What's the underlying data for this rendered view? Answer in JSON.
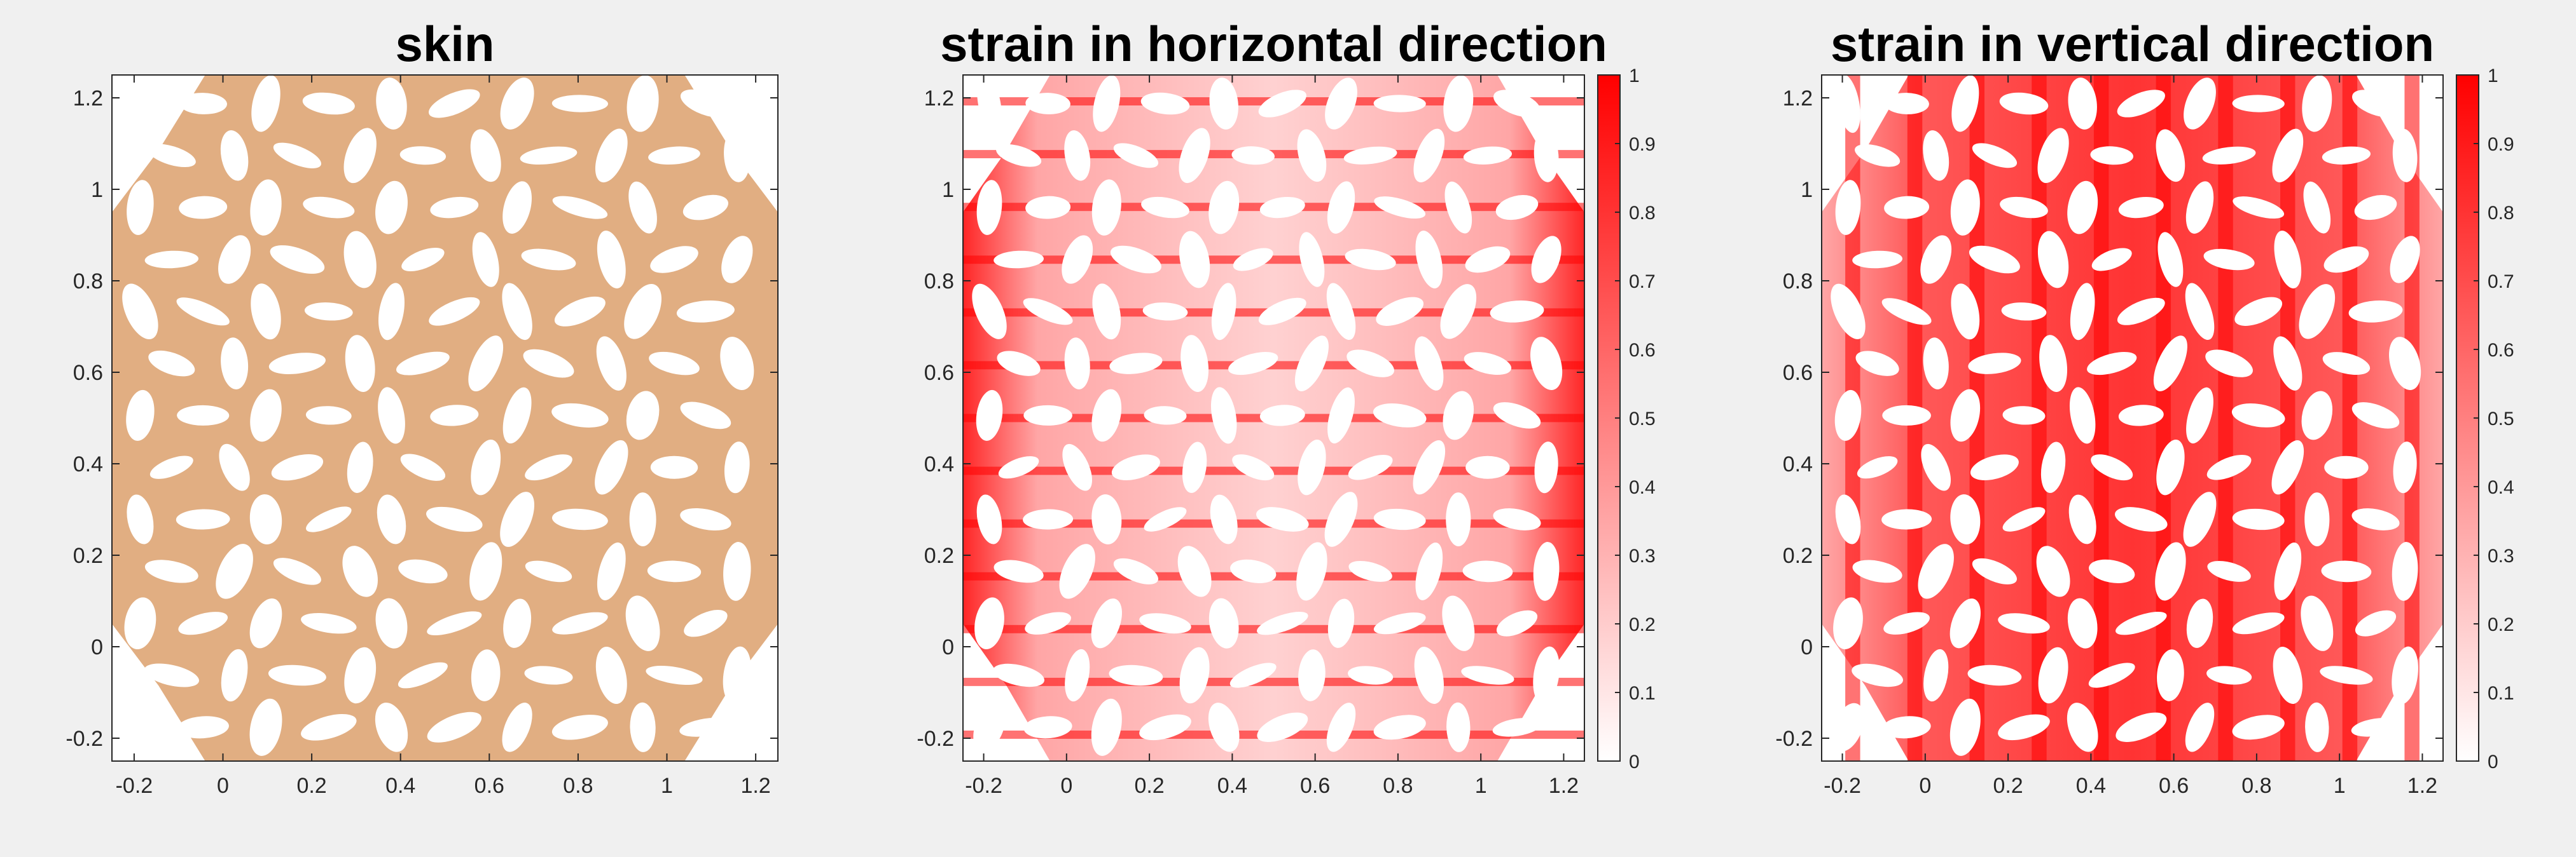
{
  "figure": {
    "background": "#f0f0f0",
    "skin_color": "#e1ae82",
    "strain_color": "#ff0000"
  },
  "chart_data": [
    {
      "type": "heatmap",
      "title": "skin",
      "xlim": [
        -0.25,
        1.25
      ],
      "ylim": [
        -0.25,
        1.25
      ],
      "xticks": [
        -0.2,
        0,
        0.2,
        0.4,
        0.6,
        0.8,
        1,
        1.2
      ],
      "yticks": [
        -0.2,
        0,
        0.2,
        0.4,
        0.6,
        0.8,
        1,
        1.2
      ],
      "xtick_labels": [
        "-0.2",
        "0",
        "0.2",
        "0.4",
        "0.6",
        "0.8",
        "1",
        "1.2"
      ],
      "ytick_labels": [
        "-0.2",
        "0",
        "0.2",
        "0.4",
        "0.6",
        "0.8",
        "1",
        "1.2"
      ],
      "colorbar": false,
      "fill": "skin"
    },
    {
      "type": "heatmap",
      "title": "strain in horizontal direction",
      "xlim": [
        -0.25,
        1.25
      ],
      "ylim": [
        -0.25,
        1.25
      ],
      "xticks": [
        -0.2,
        0,
        0.2,
        0.4,
        0.6,
        0.8,
        1,
        1.2
      ],
      "yticks": [
        -0.2,
        0,
        0.2,
        0.4,
        0.6,
        0.8,
        1,
        1.2
      ],
      "xtick_labels": [
        "-0.2",
        "0",
        "0.2",
        "0.4",
        "0.6",
        "0.8",
        "1",
        "1.2"
      ],
      "ytick_labels": [
        "-0.2",
        "0",
        "0.2",
        "0.4",
        "0.6",
        "0.8",
        "1",
        "1.2"
      ],
      "colorbar": true,
      "clim": [
        0,
        1
      ],
      "colorbar_ticks": [
        0,
        0.1,
        0.2,
        0.3,
        0.4,
        0.5,
        0.6,
        0.7,
        0.8,
        0.9,
        1
      ],
      "colorbar_tick_labels": [
        "0",
        "0.1",
        "0.2",
        "0.3",
        "0.4",
        "0.5",
        "0.6",
        "0.7",
        "0.8",
        "0.9",
        "1"
      ],
      "colormap": [
        "#ffffff",
        "#ff0000"
      ],
      "fill": "strain-h"
    },
    {
      "type": "heatmap",
      "title": "strain in vertical direction",
      "xlim": [
        -0.25,
        1.25
      ],
      "ylim": [
        -0.25,
        1.25
      ],
      "xticks": [
        -0.2,
        0,
        0.2,
        0.4,
        0.6,
        0.8,
        1,
        1.2
      ],
      "yticks": [
        -0.2,
        0,
        0.2,
        0.4,
        0.6,
        0.8,
        1,
        1.2
      ],
      "xtick_labels": [
        "-0.2",
        "0",
        "0.2",
        "0.4",
        "0.6",
        "0.8",
        "1",
        "1.2"
      ],
      "ytick_labels": [
        "-0.2",
        "0",
        "0.2",
        "0.4",
        "0.6",
        "0.8",
        "1",
        "1.2"
      ],
      "colorbar": true,
      "clim": [
        0,
        1
      ],
      "colorbar_ticks": [
        0,
        0.1,
        0.2,
        0.3,
        0.4,
        0.5,
        0.6,
        0.7,
        0.8,
        0.9,
        1
      ],
      "colorbar_tick_labels": [
        "0",
        "0.1",
        "0.2",
        "0.3",
        "0.4",
        "0.5",
        "0.6",
        "0.7",
        "0.8",
        "0.9",
        "1"
      ],
      "colormap": [
        "#ffffff",
        "#ff0000"
      ],
      "fill": "strain-v"
    }
  ]
}
